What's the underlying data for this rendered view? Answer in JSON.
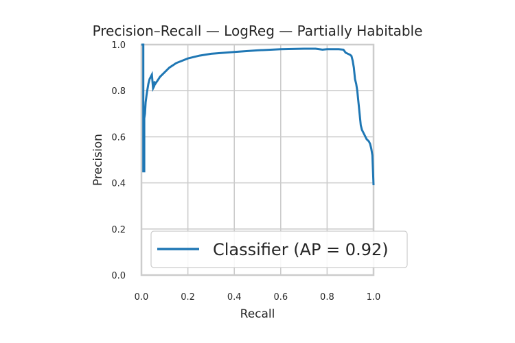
{
  "chart_data": {
    "type": "line",
    "title": "Precision–Recall — LogReg — Partially Habitable",
    "xlabel": "Recall",
    "ylabel": "Precision",
    "xlim": [
      0.0,
      1.0
    ],
    "ylim": [
      0.0,
      1.0
    ],
    "xticks": [
      "0.0",
      "0.2",
      "0.4",
      "0.6",
      "0.8",
      "1.0"
    ],
    "yticks": [
      "0.0",
      "0.2",
      "0.4",
      "0.6",
      "0.8",
      "1.0"
    ],
    "grid": true,
    "legend_position": "lower-right",
    "series": [
      {
        "name": "Classifier (AP = 0.92)",
        "color": "#1f77b4",
        "x": [
          0.0,
          0.008,
          0.008,
          0.012,
          0.012,
          0.015,
          0.018,
          0.022,
          0.025,
          0.03,
          0.035,
          0.04,
          0.045,
          0.05,
          0.055,
          0.055,
          0.06,
          0.07,
          0.08,
          0.1,
          0.12,
          0.15,
          0.2,
          0.25,
          0.3,
          0.4,
          0.5,
          0.6,
          0.7,
          0.75,
          0.78,
          0.8,
          0.85,
          0.87,
          0.88,
          0.9,
          0.905,
          0.91,
          0.915,
          0.92,
          0.925,
          0.93,
          0.935,
          0.94,
          0.945,
          0.95,
          0.96,
          0.97,
          0.98,
          0.985,
          0.99,
          0.995,
          1.0
        ],
        "y": [
          1.0,
          1.0,
          0.45,
          0.45,
          0.68,
          0.7,
          0.75,
          0.78,
          0.8,
          0.83,
          0.85,
          0.86,
          0.87,
          0.81,
          0.82,
          0.84,
          0.83,
          0.845,
          0.86,
          0.88,
          0.9,
          0.92,
          0.94,
          0.952,
          0.96,
          0.968,
          0.975,
          0.98,
          0.982,
          0.982,
          0.978,
          0.98,
          0.98,
          0.978,
          0.965,
          0.955,
          0.95,
          0.93,
          0.9,
          0.85,
          0.83,
          0.8,
          0.75,
          0.7,
          0.65,
          0.63,
          0.61,
          0.59,
          0.58,
          0.57,
          0.55,
          0.52,
          0.39
        ]
      }
    ]
  }
}
